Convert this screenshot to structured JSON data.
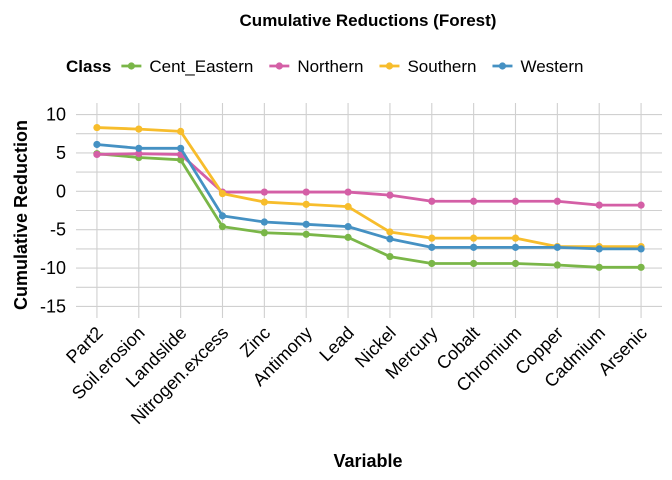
{
  "chart_data": {
    "type": "line",
    "title": "Cumulative Reductions (Forest)",
    "xlabel": "Variable",
    "ylabel": "Cumulative Reduction",
    "legend_title": "Class",
    "legend_position": "top",
    "grid": true,
    "ylim": [
      -16.5,
      11.5
    ],
    "yticks": [
      10,
      5,
      0,
      -5,
      -10,
      -15
    ],
    "categories": [
      "Part2",
      "Soil.erosion",
      "Landslide",
      "Nitrogen.excess",
      "Zinc",
      "Antimony",
      "Lead",
      "Nickel",
      "Mercury",
      "Cobalt",
      "Chromium",
      "Copper",
      "Cadmium",
      "Arsenic"
    ],
    "series": [
      {
        "name": "Cent_Eastern",
        "color": "#7ab648",
        "values": [
          4.9,
          4.4,
          4.1,
          -4.6,
          -5.4,
          -5.6,
          -6.0,
          -8.5,
          -9.4,
          -9.4,
          -9.4,
          -9.6,
          -9.9,
          -9.9
        ]
      },
      {
        "name": "Northern",
        "color": "#d45fa6",
        "values": [
          4.8,
          4.9,
          4.8,
          -0.1,
          -0.1,
          -0.1,
          -0.1,
          -0.5,
          -1.3,
          -1.3,
          -1.3,
          -1.3,
          -1.8,
          -1.8
        ]
      },
      {
        "name": "Southern",
        "color": "#f7bd2c",
        "values": [
          8.3,
          8.1,
          7.8,
          -0.3,
          -1.4,
          -1.7,
          -2.0,
          -5.3,
          -6.1,
          -6.1,
          -6.1,
          -7.2,
          -7.2,
          -7.2
        ]
      },
      {
        "name": "Western",
        "color": "#4591c3",
        "values": [
          6.1,
          5.6,
          5.6,
          -3.2,
          -4.0,
          -4.3,
          -4.6,
          -6.2,
          -7.3,
          -7.3,
          -7.3,
          -7.3,
          -7.5,
          -7.5
        ]
      }
    ]
  }
}
